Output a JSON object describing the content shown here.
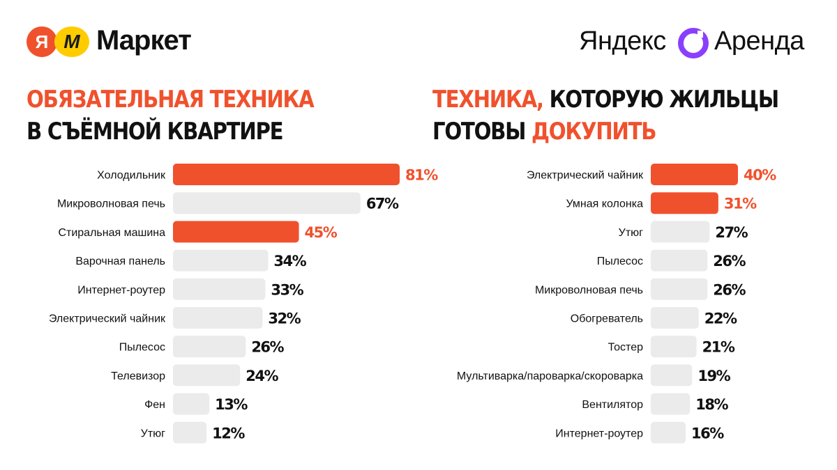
{
  "colors": {
    "accent": "#f0512d",
    "bar_gray": "#ebebeb",
    "text": "#111111"
  },
  "logos": {
    "market": {
      "ya_glyph": "Я",
      "m_glyph": "M",
      "word": "Маркет",
      "ya_color": "#f0512d",
      "m_color": "#ffcc00"
    },
    "arenda": {
      "word1": "Яндекс",
      "word2": "Аренда",
      "icon": "purple-ring-icon",
      "icon_color": "#8a3ffc"
    }
  },
  "left": {
    "title_line1": "Обязательная техника",
    "title_line2": "в съёмной квартире"
  },
  "right": {
    "title_part1": "Техника,",
    "title_part2": " которую жильцы",
    "title_part3": "готовы ",
    "title_part4": "докупить"
  },
  "chart_data": [
    {
      "type": "bar",
      "orientation": "horizontal",
      "categories": [
        "Холодильник",
        "Микроволновая печь",
        "Стиральная машина",
        "Варочная панель",
        "Интернет-роутер",
        "Электрический чайник",
        "Пылесос",
        "Телевизор",
        "Фен",
        "Утюг"
      ],
      "values": [
        81,
        67,
        45,
        34,
        33,
        32,
        26,
        24,
        13,
        12
      ],
      "labels": [
        "81%",
        "67%",
        "45%",
        "34%",
        "33%",
        "32%",
        "26%",
        "24%",
        "13%",
        "12%"
      ],
      "highlighted": [
        true,
        false,
        true,
        false,
        false,
        false,
        false,
        false,
        false,
        false
      ],
      "unit": "%"
    },
    {
      "type": "bar",
      "orientation": "horizontal",
      "categories": [
        "Электрический чайник",
        "Умная колонка",
        "Утюг",
        "Пылесос",
        "Микроволновая печь",
        "Обогреватель",
        "Тостер",
        "Мультиварка/пароварка/скороварка",
        "Вентилятор",
        "Интернет-роутер"
      ],
      "values": [
        40,
        31,
        27,
        26,
        26,
        22,
        21,
        19,
        18,
        16
      ],
      "labels": [
        "40%",
        "31%",
        "27%",
        "26%",
        "26%",
        "22%",
        "21%",
        "19%",
        "18%",
        "16%"
      ],
      "highlighted": [
        true,
        true,
        false,
        false,
        false,
        false,
        false,
        false,
        false,
        false
      ],
      "unit": "%"
    }
  ]
}
